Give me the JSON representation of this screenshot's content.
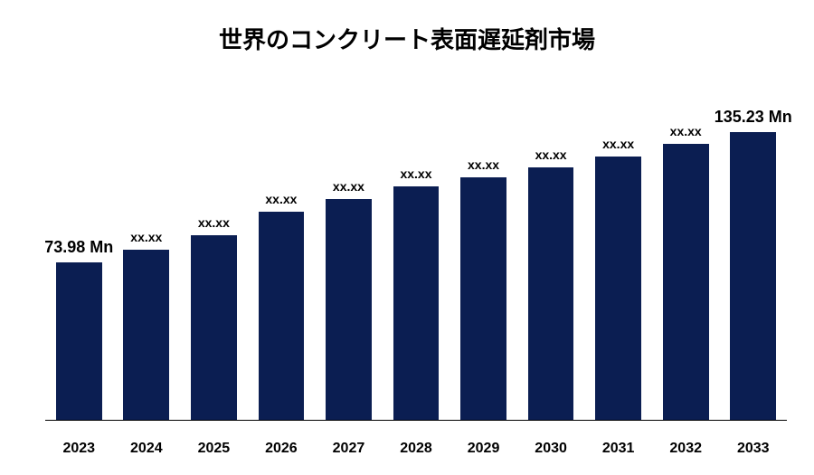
{
  "chart": {
    "type": "bar",
    "title": "世界のコンクリート表面遅延剤市場",
    "title_fontsize": 26,
    "categories": [
      "2023",
      "2024",
      "2025",
      "2026",
      "2027",
      "2028",
      "2029",
      "2030",
      "2031",
      "2032",
      "2033"
    ],
    "values": [
      73.98,
      80,
      87,
      98,
      104,
      110,
      114,
      119,
      124,
      130,
      135.23
    ],
    "value_labels": [
      "73.98 Mn",
      "xx.xx",
      "xx.xx",
      "xx.xx",
      "xx.xx",
      "xx.xx",
      "xx.xx",
      "xx.xx",
      "xx.xx",
      "xx.xx",
      "135.23 Mn"
    ],
    "label_fontsizes": [
      18,
      14,
      14,
      14,
      14,
      14,
      14,
      14,
      14,
      14,
      18
    ],
    "bar_color": "#0b1e52",
    "background_color": "#ffffff",
    "axis_line_color": "#000000",
    "ylim_max": 155,
    "xlabel_fontsize": 16,
    "bar_width_ratio": 0.68
  }
}
